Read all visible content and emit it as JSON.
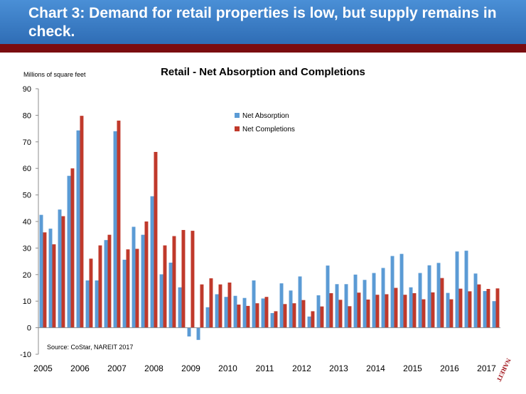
{
  "slide": {
    "title": "Chart 3: Demand for retail properties is low, but supply remains in check.",
    "logo_text": "NAREIT",
    "colors": {
      "header": "#3a7cc6",
      "rule": "#7a0c10"
    }
  },
  "chart_data": {
    "type": "bar",
    "title": "Retail - Net Absorption and Completions",
    "ylabel": "Millions of square feet",
    "xlabel": "",
    "ylim": [
      -10,
      90
    ],
    "yticks": [
      -10,
      0,
      10,
      20,
      30,
      40,
      50,
      60,
      70,
      80,
      90
    ],
    "year_labels": [
      "2005",
      "2006",
      "2007",
      "2008",
      "2009",
      "2010",
      "2011",
      "2012",
      "2013",
      "2014",
      "2015",
      "2016",
      "2017"
    ],
    "periods_per_year": 4,
    "grid": false,
    "legend_position": "upper-right",
    "source": "Source: CoStar, NAREIT 2017",
    "series": [
      {
        "name": "Net Absorption",
        "color": "#5b9bd5",
        "values": [
          42.5,
          37.3,
          44.5,
          57.2,
          74.3,
          17.8,
          17.8,
          33.0,
          74.0,
          25.6,
          38.0,
          35.0,
          49.5,
          20.1,
          24.5,
          15.2,
          -3.3,
          -4.6,
          7.7,
          12.6,
          11.6,
          12.0,
          11.2,
          17.8,
          11.0,
          5.5,
          16.7,
          14.0,
          19.3,
          4.2,
          12.2,
          23.4,
          16.4,
          16.4,
          20.0,
          18.0,
          20.6,
          22.5,
          27.0,
          27.8,
          15.2,
          20.6,
          23.5,
          24.4,
          13.1,
          28.7,
          29.0,
          20.4,
          13.8,
          10.0
        ]
      },
      {
        "name": "Net Completions",
        "color": "#c0392b",
        "values": [
          35.9,
          31.4,
          42.0,
          60.0,
          79.8,
          26.0,
          31.0,
          35.0,
          78.0,
          29.5,
          29.7,
          40.0,
          66.2,
          31.0,
          34.5,
          36.8,
          36.5,
          16.3,
          18.6,
          16.3,
          17.0,
          8.7,
          8.2,
          9.2,
          11.6,
          6.2,
          8.9,
          9.2,
          10.4,
          6.2,
          8.0,
          13.0,
          10.5,
          8.1,
          13.2,
          10.6,
          12.4,
          12.6,
          15.0,
          12.4,
          13.0,
          10.7,
          13.3,
          18.7,
          10.7,
          14.7,
          13.7,
          16.3,
          14.6,
          14.8
        ]
      }
    ]
  }
}
